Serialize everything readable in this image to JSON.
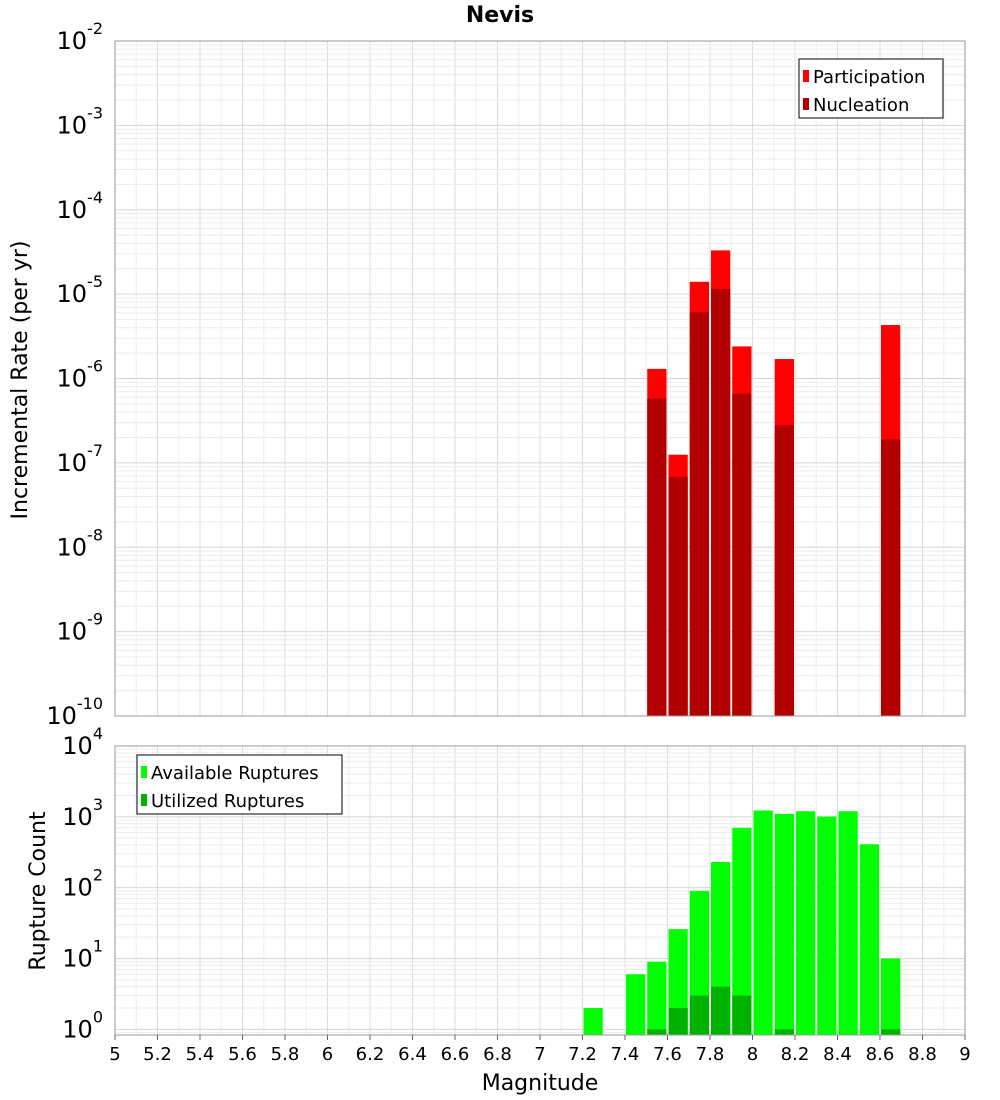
{
  "chart_data": [
    {
      "type": "bar",
      "title": "Nevis",
      "ylabel": "Incremental Rate (per yr)",
      "xlabel": "",
      "yscale": "log",
      "ylim_exponents": [
        -10,
        -2
      ],
      "y_tick_base": "10",
      "y_tick_exponents": [
        "-10",
        "-9",
        "-8",
        "-7",
        "-6",
        "-5",
        "-4",
        "-3",
        "-2"
      ],
      "xlim": [
        5,
        9
      ],
      "bar_width": 0.1,
      "grid": true,
      "legend": {
        "position": "top-right",
        "items": [
          {
            "label": "Participation",
            "color": "#ff0000"
          },
          {
            "label": "Nucleation",
            "color": "#b20000"
          }
        ]
      },
      "series": [
        {
          "name": "Participation",
          "color": "#ff0000",
          "x": [
            7.55,
            7.65,
            7.75,
            7.85,
            7.95,
            8.15,
            8.65
          ],
          "values": [
            1.3e-06,
            1.25e-07,
            1.4e-05,
            3.3e-05,
            2.4e-06,
            1.7e-06,
            4.3e-06
          ]
        },
        {
          "name": "Nucleation",
          "color": "#b20000",
          "x": [
            7.55,
            7.65,
            7.75,
            7.85,
            7.95,
            8.15,
            8.65
          ],
          "values": [
            5.8e-07,
            6.8e-08,
            6.1e-06,
            1.15e-05,
            6.6e-07,
            2.8e-07,
            1.9e-07
          ]
        }
      ]
    },
    {
      "type": "bar",
      "title": "",
      "ylabel": "Rupture Count",
      "xlabel": "Magnitude",
      "yscale": "log",
      "ylim_exponents": [
        -0.08,
        4
      ],
      "y_tick_base": "10",
      "y_tick_exponents": [
        "0",
        "1",
        "2",
        "3",
        "4"
      ],
      "xlim": [
        5,
        9
      ],
      "x_ticks": [
        "5",
        "5.2",
        "5.4",
        "5.6",
        "5.8",
        "6",
        "6.2",
        "6.4",
        "6.6",
        "6.8",
        "7",
        "7.2",
        "7.4",
        "7.6",
        "7.8",
        "8",
        "8.2",
        "8.4",
        "8.6",
        "8.8",
        "9"
      ],
      "bar_width": 0.1,
      "grid": true,
      "legend": {
        "position": "top-left",
        "items": [
          {
            "label": "Available Ruptures",
            "color": "#00ff00"
          },
          {
            "label": "Utilized Ruptures",
            "color": "#00b200"
          }
        ]
      },
      "series": [
        {
          "name": "Available Ruptures",
          "color": "#00ff00",
          "x": [
            7.25,
            7.45,
            7.55,
            7.65,
            7.75,
            7.85,
            7.95,
            8.05,
            8.15,
            8.25,
            8.35,
            8.45,
            8.55,
            8.65
          ],
          "values": [
            2,
            6,
            9,
            26,
            90,
            230,
            700,
            1230,
            1100,
            1200,
            1010,
            1200,
            410,
            10
          ]
        },
        {
          "name": "Utilized Ruptures",
          "color": "#00b200",
          "x": [
            7.55,
            7.65,
            7.75,
            7.85,
            7.95,
            8.15,
            8.65
          ],
          "values": [
            1,
            2,
            3,
            4,
            3,
            1,
            1
          ]
        }
      ]
    }
  ]
}
